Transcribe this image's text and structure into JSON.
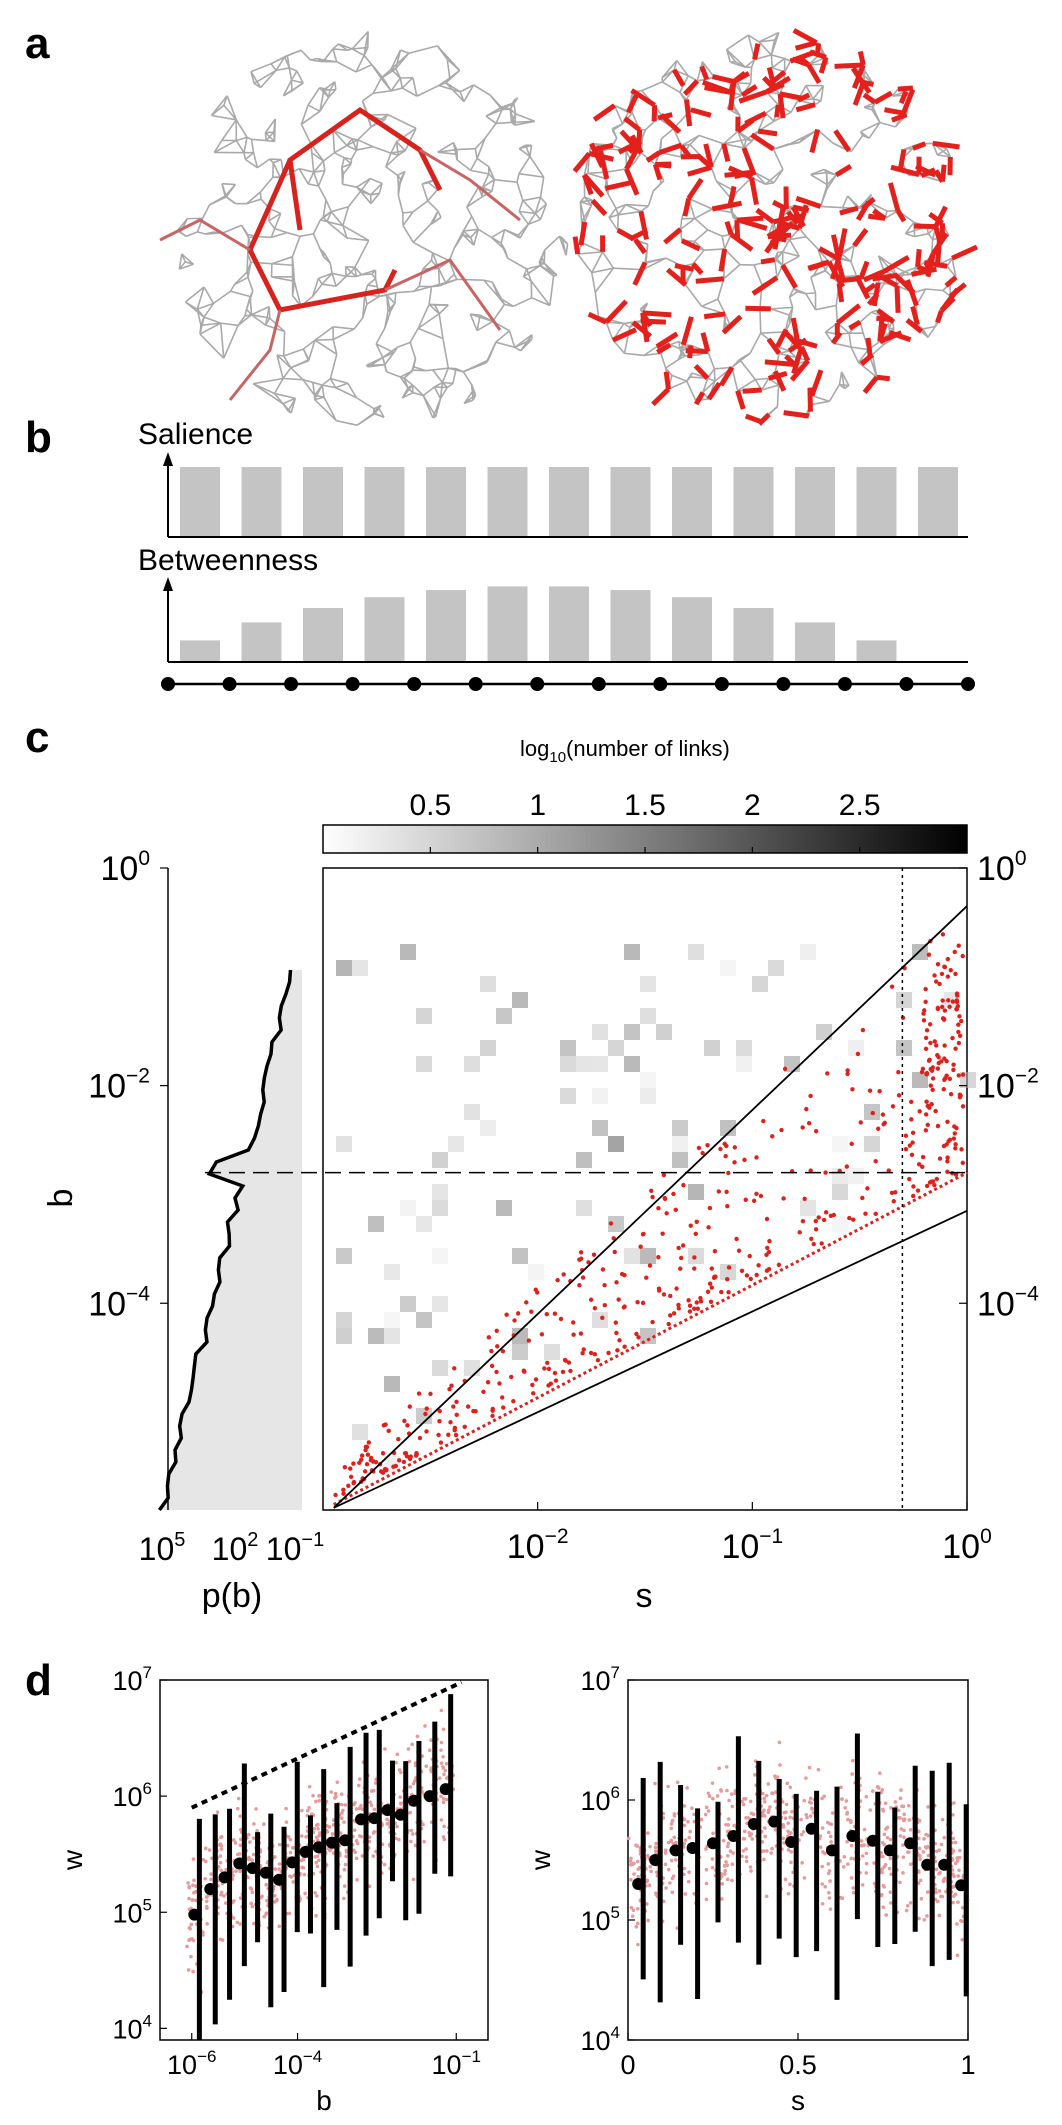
{
  "panels": {
    "a": "a",
    "b": "b",
    "c": "c",
    "d": "d"
  },
  "panel_b": {
    "salience_label": "Salience",
    "betweenness_label": "Betweenness",
    "salience_values": [
      1,
      1,
      1,
      1,
      1,
      1,
      1,
      1,
      1,
      1,
      1,
      1,
      1
    ],
    "betweenness_values": [
      12,
      22,
      30,
      36,
      40,
      42,
      42,
      40,
      36,
      30,
      22,
      12,
      0.001
    ],
    "node_count": 14,
    "bar_color": "#c4c4c4"
  },
  "chart_data": [
    {
      "id": "c-main",
      "type": "heatmap",
      "title": "log10(number of links)",
      "title_base": "log",
      "title_sub": "10",
      "title_rest": "(number of links)",
      "xlabel": "s",
      "ylabel": "b",
      "x_scale": "log",
      "y_scale": "log",
      "xlim_exp": [
        -3,
        0
      ],
      "ylim_exp": [
        -5.9,
        0
      ],
      "x_ticks": [
        {
          "exp": -2,
          "base": "10",
          "sup": "−2"
        },
        {
          "exp": -1,
          "base": "10",
          "sup": "−1"
        },
        {
          "exp": 0,
          "base": "10",
          "sup": "0"
        }
      ],
      "y_ticks": [
        {
          "exp": -4,
          "base": "10",
          "sup": "−4"
        },
        {
          "exp": -2,
          "base": "10",
          "sup": "−2"
        },
        {
          "exp": 0,
          "base": "10",
          "sup": "0"
        }
      ],
      "colorbar": {
        "range": [
          0,
          3
        ],
        "ticks": [
          "0.5",
          "1",
          "1.5",
          "2",
          "2.5"
        ],
        "tick_values": [
          0.5,
          1,
          1.5,
          2,
          2.5
        ]
      },
      "reference_lines": {
        "dashed_b_exp": -2.8,
        "dotted_s": 0.5,
        "upper_bound_exp_at_s1": -0.35,
        "lower_bound_exp_at_s1": -3.15
      },
      "point_color": "#e0201a"
    },
    {
      "id": "c-side",
      "type": "area",
      "xlabel": "p(b)",
      "x_ticks": [
        {
          "base": "10",
          "sup": "5"
        },
        {
          "base": "10",
          "sup": "2"
        },
        {
          "base": "10",
          "sup": "−1"
        }
      ],
      "fill_color": "#e6e6e6"
    },
    {
      "id": "d-left",
      "type": "scatter",
      "xlabel": "b",
      "ylabel": "w",
      "x_scale": "log",
      "y_scale": "log",
      "xlim_exp": [
        -6.6,
        -0.4
      ],
      "ylim_exp": [
        3.9,
        7
      ],
      "x_ticks": [
        {
          "exp": -6,
          "base": "10",
          "sup": "−6"
        },
        {
          "exp": -4,
          "base": "10",
          "sup": "−4"
        },
        {
          "exp": -1,
          "base": "10",
          "sup": "−1"
        }
      ],
      "y_ticks": [
        {
          "exp": 4,
          "base": "10",
          "sup": "4"
        },
        {
          "exp": 5,
          "base": "10",
          "sup": "5"
        },
        {
          "exp": 6,
          "base": "10",
          "sup": "6"
        },
        {
          "exp": 7,
          "base": "10",
          "sup": "7"
        }
      ],
      "means": [
        {
          "x": -5.95,
          "y": 4.98
        },
        {
          "x": -5.65,
          "y": 5.2
        },
        {
          "x": -5.38,
          "y": 5.3
        },
        {
          "x": -5.1,
          "y": 5.42
        },
        {
          "x": -4.85,
          "y": 5.38
        },
        {
          "x": -4.6,
          "y": 5.34
        },
        {
          "x": -4.35,
          "y": 5.28
        },
        {
          "x": -4.1,
          "y": 5.43
        },
        {
          "x": -3.85,
          "y": 5.52
        },
        {
          "x": -3.6,
          "y": 5.56
        },
        {
          "x": -3.35,
          "y": 5.6
        },
        {
          "x": -3.1,
          "y": 5.62
        },
        {
          "x": -2.8,
          "y": 5.8
        },
        {
          "x": -2.55,
          "y": 5.81
        },
        {
          "x": -2.3,
          "y": 5.88
        },
        {
          "x": -2.05,
          "y": 5.84
        },
        {
          "x": -1.8,
          "y": 5.96
        },
        {
          "x": -1.5,
          "y": 6.0
        },
        {
          "x": -1.2,
          "y": 6.06
        }
      ],
      "bound_line": {
        "x": [
          -6,
          -0.9
        ],
        "y": [
          5.9,
          6.98
        ]
      },
      "point_color": "#e89a9a"
    },
    {
      "id": "d-right",
      "type": "scatter",
      "xlabel": "s",
      "ylabel": "w",
      "x_scale": "linear",
      "y_scale": "log",
      "xlim": [
        0,
        1
      ],
      "ylim_exp": [
        4,
        7
      ],
      "x_ticks": [
        {
          "value": 0,
          "label": "0"
        },
        {
          "value": 0.5,
          "label": "0.5"
        },
        {
          "value": 1,
          "label": "1"
        }
      ],
      "y_ticks": [
        {
          "exp": 4,
          "base": "10",
          "sup": "4"
        },
        {
          "exp": 5,
          "base": "10",
          "sup": "5"
        },
        {
          "exp": 6,
          "base": "10",
          "sup": "6"
        },
        {
          "exp": 7,
          "base": "10",
          "sup": "7"
        }
      ],
      "means": [
        {
          "x": 0.03,
          "y": 5.3
        },
        {
          "x": 0.08,
          "y": 5.5
        },
        {
          "x": 0.14,
          "y": 5.58
        },
        {
          "x": 0.19,
          "y": 5.6
        },
        {
          "x": 0.25,
          "y": 5.64
        },
        {
          "x": 0.31,
          "y": 5.7
        },
        {
          "x": 0.37,
          "y": 5.8
        },
        {
          "x": 0.43,
          "y": 5.82
        },
        {
          "x": 0.48,
          "y": 5.65
        },
        {
          "x": 0.54,
          "y": 5.76
        },
        {
          "x": 0.6,
          "y": 5.58
        },
        {
          "x": 0.66,
          "y": 5.7
        },
        {
          "x": 0.72,
          "y": 5.66
        },
        {
          "x": 0.77,
          "y": 5.58
        },
        {
          "x": 0.83,
          "y": 5.64
        },
        {
          "x": 0.88,
          "y": 5.46
        },
        {
          "x": 0.93,
          "y": 5.46
        },
        {
          "x": 0.98,
          "y": 5.29
        }
      ],
      "point_color": "#e89a9a"
    }
  ]
}
